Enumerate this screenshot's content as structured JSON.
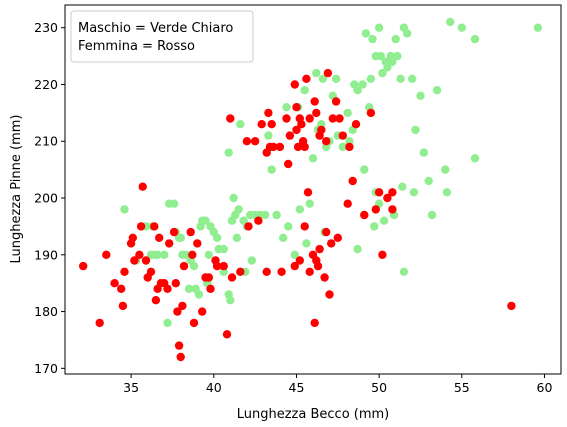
{
  "chart_data": {
    "type": "scatter",
    "xlabel": "Lunghezza Becco (mm)",
    "ylabel": "Lunghezza Pinne (mm)",
    "xlim": [
      31.0,
      61.0
    ],
    "ylim": [
      169.0,
      234.0
    ],
    "xticks": [
      35,
      40,
      45,
      50,
      55,
      60
    ],
    "yticks": [
      170,
      180,
      190,
      200,
      210,
      220,
      230
    ],
    "legend_lines": [
      "Maschio = Verde Chiaro",
      "Femmina = Rosso"
    ],
    "legend_position": "top-left",
    "series": [
      {
        "color": "#90ee90",
        "points": [
          [
            34.6,
            198
          ],
          [
            35.3,
            189
          ],
          [
            35.9,
            195
          ],
          [
            36.2,
            190
          ],
          [
            36.3,
            195
          ],
          [
            36.4,
            190
          ],
          [
            36.6,
            190
          ],
          [
            37.0,
            190
          ],
          [
            37.2,
            178
          ],
          [
            37.3,
            199
          ],
          [
            37.6,
            199
          ],
          [
            37.7,
            194
          ],
          [
            37.9,
            193
          ],
          [
            38.0,
            193
          ],
          [
            38.1,
            190
          ],
          [
            38.3,
            190
          ],
          [
            38.5,
            184
          ],
          [
            38.6,
            189
          ],
          [
            38.8,
            188
          ],
          [
            38.9,
            184
          ],
          [
            39.1,
            183
          ],
          [
            39.2,
            195
          ],
          [
            39.3,
            196
          ],
          [
            39.5,
            196
          ],
          [
            39.7,
            190
          ],
          [
            39.8,
            195
          ],
          [
            40.0,
            194
          ],
          [
            40.2,
            193
          ],
          [
            40.3,
            191
          ],
          [
            40.6,
            191
          ],
          [
            40.9,
            183
          ],
          [
            41.0,
            182
          ],
          [
            41.1,
            196
          ],
          [
            41.3,
            197
          ],
          [
            41.5,
            198
          ],
          [
            41.8,
            196
          ],
          [
            42.0,
            195
          ],
          [
            42.2,
            197
          ],
          [
            42.5,
            197
          ],
          [
            42.8,
            197
          ],
          [
            43.1,
            197
          ],
          [
            43.5,
            205
          ],
          [
            43.8,
            197
          ],
          [
            44.2,
            193
          ],
          [
            44.5,
            195
          ],
          [
            44.9,
            190
          ],
          [
            45.2,
            198
          ],
          [
            45.8,
            199
          ],
          [
            46.0,
            207
          ],
          [
            46.3,
            212
          ],
          [
            46.5,
            213
          ],
          [
            46.8,
            209
          ],
          [
            47.0,
            210
          ],
          [
            47.5,
            211
          ],
          [
            47.8,
            209
          ],
          [
            48.1,
            215
          ],
          [
            48.2,
            210
          ],
          [
            48.4,
            212
          ],
          [
            48.7,
            219
          ],
          [
            49.0,
            220
          ],
          [
            49.2,
            229
          ],
          [
            49.4,
            216
          ],
          [
            49.5,
            221
          ],
          [
            49.6,
            228
          ],
          [
            49.8,
            225
          ],
          [
            50.0,
            230
          ],
          [
            50.1,
            225
          ],
          [
            50.2,
            222
          ],
          [
            50.4,
            224
          ],
          [
            50.5,
            223
          ],
          [
            50.7,
            225
          ],
          [
            50.8,
            224
          ],
          [
            51.0,
            228
          ],
          [
            51.1,
            225
          ],
          [
            51.3,
            221
          ],
          [
            51.5,
            230
          ],
          [
            51.7,
            229
          ],
          [
            52.0,
            221
          ],
          [
            52.2,
            212
          ],
          [
            52.5,
            218
          ],
          [
            52.7,
            208
          ],
          [
            53.0,
            203
          ],
          [
            53.5,
            219
          ],
          [
            54.0,
            205
          ],
          [
            54.3,
            231
          ],
          [
            55.0,
            230
          ],
          [
            55.8,
            228
          ],
          [
            59.6,
            230
          ],
          [
            41.2,
            200
          ],
          [
            40.9,
            208
          ],
          [
            41.6,
            213
          ],
          [
            43.3,
            211
          ],
          [
            44.4,
            216
          ],
          [
            45.1,
            216
          ],
          [
            45.5,
            219
          ],
          [
            46.2,
            222
          ],
          [
            46.6,
            221
          ],
          [
            47.2,
            218
          ],
          [
            47.4,
            221
          ],
          [
            48.5,
            220
          ],
          [
            49.1,
            205
          ],
          [
            49.8,
            201
          ],
          [
            50.0,
            199
          ],
          [
            50.3,
            196
          ],
          [
            50.9,
            197
          ],
          [
            51.4,
            202
          ],
          [
            52.1,
            201
          ],
          [
            53.2,
            197
          ],
          [
            54.1,
            201
          ],
          [
            55.8,
            207
          ],
          [
            51.5,
            187
          ],
          [
            49.7,
            195
          ],
          [
            48.7,
            191
          ],
          [
            46.7,
            194
          ],
          [
            45.6,
            192
          ],
          [
            42.3,
            189
          ],
          [
            40.6,
            187
          ],
          [
            41.9,
            187
          ],
          [
            41.4,
            193
          ],
          [
            39.6,
            185
          ]
        ]
      },
      {
        "color": "#ff0000",
        "points": [
          [
            32.1,
            188
          ],
          [
            33.1,
            178
          ],
          [
            33.5,
            190
          ],
          [
            34.0,
            185
          ],
          [
            34.4,
            184
          ],
          [
            34.5,
            181
          ],
          [
            34.6,
            187
          ],
          [
            35.0,
            192
          ],
          [
            35.1,
            193
          ],
          [
            35.2,
            189
          ],
          [
            35.5,
            190
          ],
          [
            35.6,
            195
          ],
          [
            35.7,
            202
          ],
          [
            35.9,
            189
          ],
          [
            36.0,
            186
          ],
          [
            36.2,
            187
          ],
          [
            36.4,
            195
          ],
          [
            36.5,
            182
          ],
          [
            36.6,
            184
          ],
          [
            36.7,
            193
          ],
          [
            36.8,
            185
          ],
          [
            37.0,
            185
          ],
          [
            37.2,
            184
          ],
          [
            37.3,
            192
          ],
          [
            37.6,
            194
          ],
          [
            37.7,
            185
          ],
          [
            37.8,
            180
          ],
          [
            37.9,
            174
          ],
          [
            38.0,
            172
          ],
          [
            38.1,
            181
          ],
          [
            38.2,
            188
          ],
          [
            38.6,
            194
          ],
          [
            38.7,
            190
          ],
          [
            38.8,
            178
          ],
          [
            39.0,
            192
          ],
          [
            39.3,
            180
          ],
          [
            39.5,
            186
          ],
          [
            39.7,
            186
          ],
          [
            39.8,
            184
          ],
          [
            40.1,
            189
          ],
          [
            40.2,
            188
          ],
          [
            40.6,
            188
          ],
          [
            40.8,
            176
          ],
          [
            41.1,
            186
          ],
          [
            41.6,
            187
          ],
          [
            42.1,
            195
          ],
          [
            42.7,
            196
          ],
          [
            43.2,
            187
          ],
          [
            44.1,
            187
          ],
          [
            44.9,
            188
          ],
          [
            45.2,
            189
          ],
          [
            45.5,
            195
          ],
          [
            45.8,
            187
          ],
          [
            46.0,
            190
          ],
          [
            46.1,
            178
          ],
          [
            46.2,
            189
          ],
          [
            46.3,
            188
          ],
          [
            46.4,
            191
          ],
          [
            46.7,
            186
          ],
          [
            47.0,
            183
          ],
          [
            47.5,
            193
          ],
          [
            48.1,
            199
          ],
          [
            48.4,
            203
          ],
          [
            49.1,
            197
          ],
          [
            49.8,
            198
          ],
          [
            50.0,
            201
          ],
          [
            50.2,
            190
          ],
          [
            50.5,
            200
          ],
          [
            50.8,
            201
          ],
          [
            58.0,
            181
          ],
          [
            41.0,
            214
          ],
          [
            42.0,
            210
          ],
          [
            42.5,
            210
          ],
          [
            42.9,
            213
          ],
          [
            43.3,
            215
          ],
          [
            43.4,
            209
          ],
          [
            43.6,
            209
          ],
          [
            44.0,
            209
          ],
          [
            44.4,
            214
          ],
          [
            45.0,
            216
          ],
          [
            45.0,
            212
          ],
          [
            45.2,
            214
          ],
          [
            45.3,
            213
          ],
          [
            45.4,
            210
          ],
          [
            45.5,
            209
          ],
          [
            45.6,
            221
          ],
          [
            45.8,
            214
          ],
          [
            46.1,
            217
          ],
          [
            46.2,
            215
          ],
          [
            46.4,
            211
          ],
          [
            46.5,
            212
          ],
          [
            46.8,
            210
          ],
          [
            47.2,
            214
          ],
          [
            47.4,
            217
          ],
          [
            47.6,
            214
          ],
          [
            47.8,
            211
          ],
          [
            48.2,
            209
          ],
          [
            48.6,
            213
          ],
          [
            49.5,
            215
          ],
          [
            45.1,
            209
          ],
          [
            43.2,
            208
          ],
          [
            44.5,
            206
          ],
          [
            46.9,
            222
          ],
          [
            44.9,
            220
          ],
          [
            44.6,
            211
          ],
          [
            43.5,
            213
          ],
          [
            45.7,
            201
          ],
          [
            46.8,
            194
          ],
          [
            47.1,
            192
          ],
          [
            50.8,
            198
          ]
        ]
      }
    ]
  }
}
